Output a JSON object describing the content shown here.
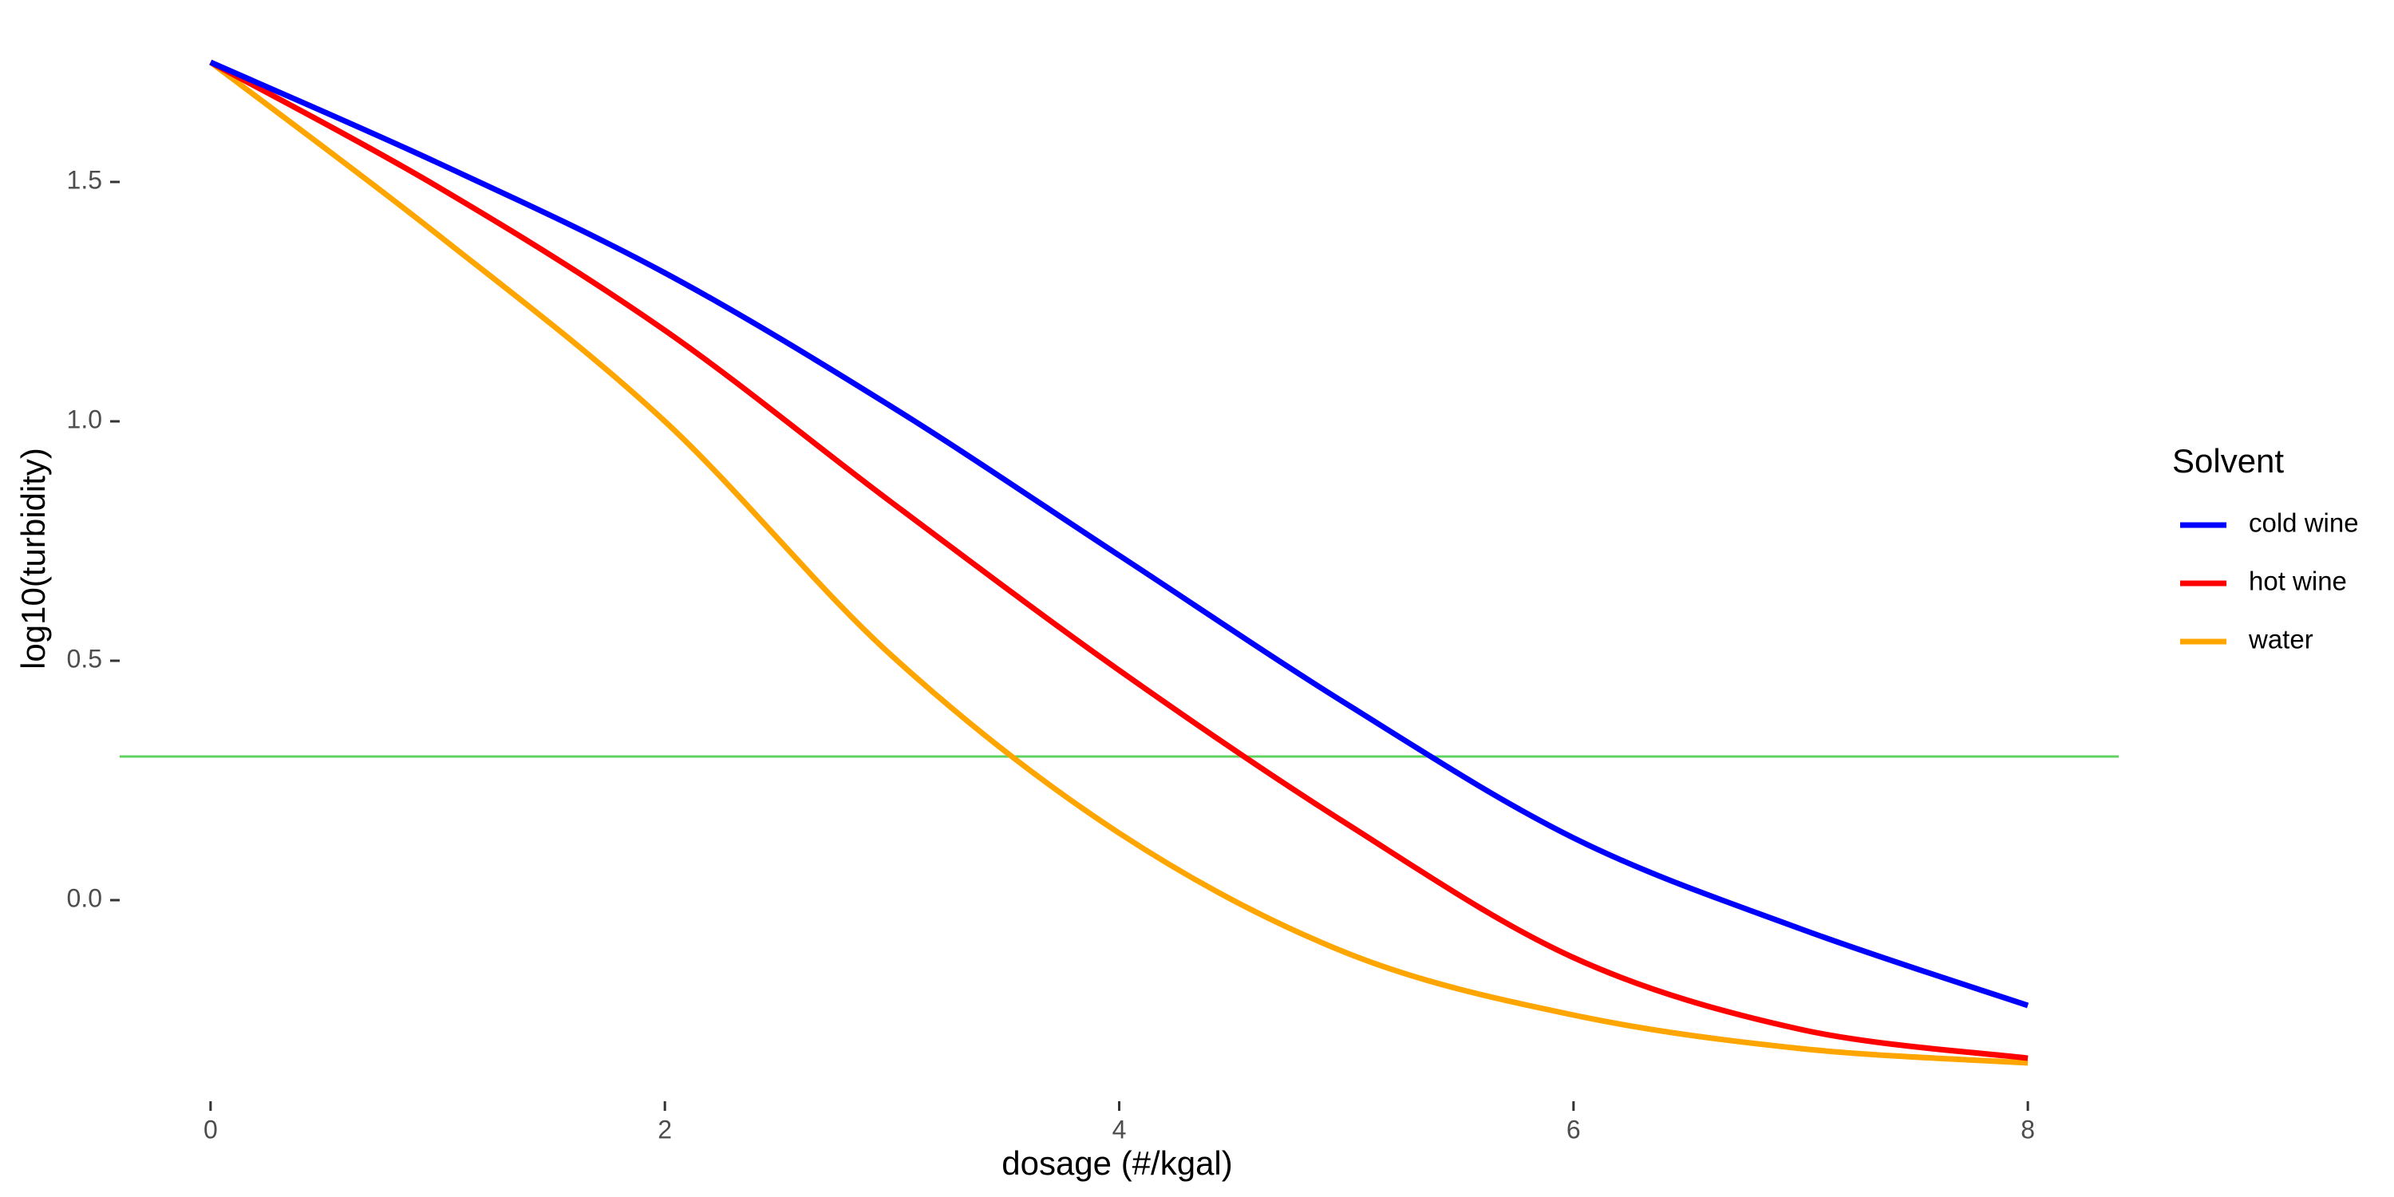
{
  "chart_data": {
    "type": "line",
    "title": "",
    "xlabel": "dosage (#/kgal)",
    "ylabel": "log10(turbidity)",
    "xlim": [
      -0.4,
      8.4
    ],
    "ylim": [
      -0.42,
      1.78
    ],
    "xticks": [
      0,
      2,
      4,
      6,
      8
    ],
    "xtick_labels": [
      "0",
      "2",
      "4",
      "6",
      "8"
    ],
    "yticks": [
      0.0,
      0.5,
      1.0,
      1.5
    ],
    "ytick_labels": [
      "0.0",
      "0.5",
      "1.0",
      "1.5"
    ],
    "grid": false,
    "legend": {
      "title": "Solvent",
      "placement": "right"
    },
    "hline": {
      "y": 0.3,
      "color": "#5fd35f"
    },
    "series": [
      {
        "name": "cold wine",
        "color": "#0000ff",
        "x": [
          0,
          1,
          2,
          3,
          4,
          5,
          6,
          7,
          8
        ],
        "y": [
          1.75,
          1.54,
          1.31,
          1.03,
          0.72,
          0.41,
          0.13,
          -0.06,
          -0.22
        ]
      },
      {
        "name": "hot wine",
        "color": "#ff0000",
        "x": [
          0,
          1,
          2,
          3,
          4,
          5,
          6,
          7,
          8
        ],
        "y": [
          1.75,
          1.49,
          1.19,
          0.83,
          0.48,
          0.16,
          -0.12,
          -0.27,
          -0.33
        ]
      },
      {
        "name": "water",
        "color": "#ffa500",
        "x": [
          0,
          1,
          2,
          3,
          4,
          5,
          6,
          7,
          8
        ],
        "y": [
          1.75,
          1.39,
          1.0,
          0.51,
          0.14,
          -0.11,
          -0.24,
          -0.31,
          -0.34
        ]
      }
    ]
  }
}
